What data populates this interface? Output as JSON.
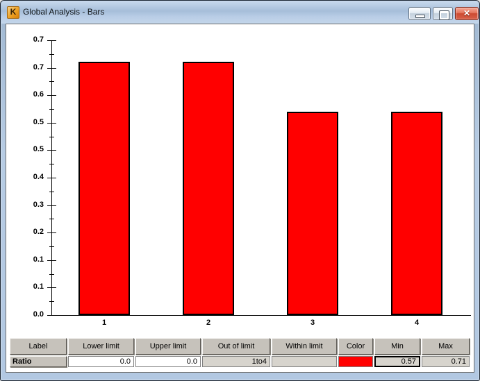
{
  "window": {
    "title": "Global Analysis - Bars",
    "controls": {
      "minimize_label": "minimize",
      "maximize_label": "maximize",
      "close_label": "close",
      "close_glyph": "✕"
    },
    "icon_glyph": "K"
  },
  "chart_data": {
    "type": "bar",
    "categories": [
      "1",
      "2",
      "3",
      "4"
    ],
    "values": [
      0.71,
      0.71,
      0.57,
      0.57
    ],
    "title": "",
    "xlabel": "",
    "ylabel": "",
    "ylim": [
      0,
      0.77
    ],
    "ytick_labels_top_to_bottom": [
      "0.7",
      "0.7",
      "0.6",
      "0.5",
      "0.5",
      "0.4",
      "0.3",
      "0.2",
      "0.1",
      "0.1",
      "0.0"
    ],
    "bar_color": "#ff0000",
    "bar_border_color": "#000000",
    "grid": false,
    "legend": false
  },
  "table": {
    "columns": [
      "Label",
      "Lower limit",
      "Upper limit",
      "Out of limit",
      "Within limit",
      "Color",
      "Min",
      "Max"
    ],
    "row": {
      "label": "Ratio",
      "lower_limit": "0.0",
      "upper_limit": "0.0",
      "out_of_limit": "1to4",
      "within_limit": "",
      "color": "#ff0000",
      "min": "0.57",
      "max": "0.71"
    }
  },
  "colors": {
    "titlebar_blue": "#b7cce4",
    "bar_red": "#ff0000",
    "header_gray": "#c6c2bb",
    "readonly_gray": "#d7d4cd"
  }
}
